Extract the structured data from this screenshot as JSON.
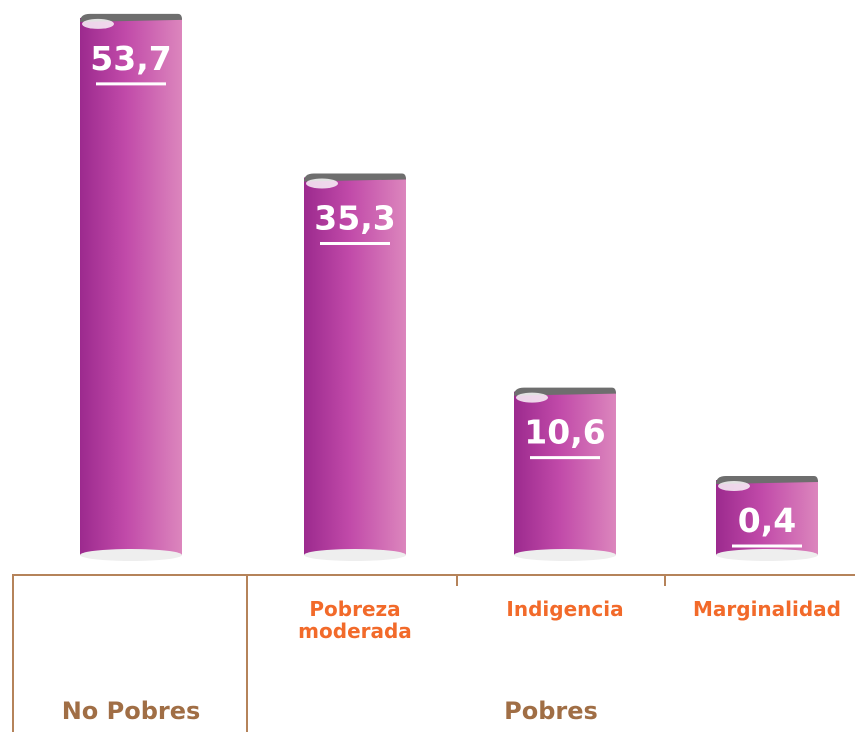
{
  "chart_data": {
    "type": "bar",
    "categories": [
      "No Pobres",
      "Pobreza moderada",
      "Indigencia",
      "Marginalidad"
    ],
    "values": [
      53.7,
      35.3,
      10.6,
      0.4
    ],
    "value_labels": [
      "53,7",
      "35,3",
      "10,6",
      "0,4"
    ],
    "group_label": "Pobres",
    "color": "#b0389f"
  }
}
